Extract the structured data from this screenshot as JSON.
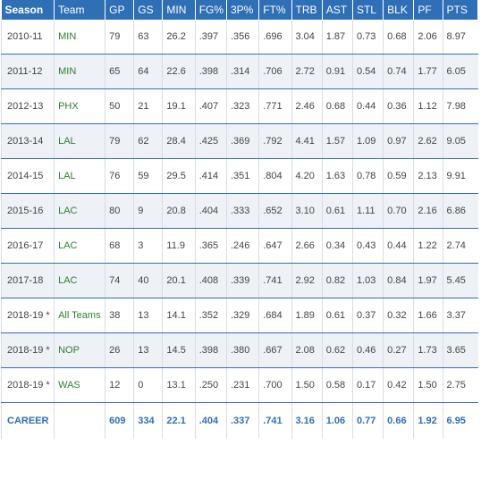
{
  "headers": [
    "Season",
    "Team",
    "GP",
    "GS",
    "MIN",
    "FG%",
    "3P%",
    "FT%",
    "TRB",
    "AST",
    "STL",
    "BLK",
    "PF",
    "PTS"
  ],
  "rows": [
    [
      "2010-11",
      "MIN",
      "79",
      "63",
      "26.2",
      ".397",
      ".356",
      ".696",
      "3.04",
      "1.87",
      "0.73",
      "0.68",
      "2.06",
      "8.97"
    ],
    [
      "2011-12",
      "MIN",
      "65",
      "64",
      "22.6",
      ".398",
      ".314",
      ".706",
      "2.72",
      "0.91",
      "0.54",
      "0.74",
      "1.77",
      "6.05"
    ],
    [
      "2012-13",
      "PHX",
      "50",
      "21",
      "19.1",
      ".407",
      ".323",
      ".771",
      "2.46",
      "0.68",
      "0.44",
      "0.36",
      "1.12",
      "7.98"
    ],
    [
      "2013-14",
      "LAL",
      "79",
      "62",
      "28.4",
      ".425",
      ".369",
      ".792",
      "4.41",
      "1.57",
      "1.09",
      "0.97",
      "2.62",
      "9.05"
    ],
    [
      "2014-15",
      "LAL",
      "76",
      "59",
      "29.5",
      ".414",
      ".351",
      ".804",
      "4.20",
      "1.63",
      "0.78",
      "0.59",
      "2.13",
      "9.91"
    ],
    [
      "2015-16",
      "LAC",
      "80",
      "9",
      "20.8",
      ".404",
      ".333",
      ".652",
      "3.10",
      "0.61",
      "1.11",
      "0.70",
      "2.16",
      "6.86"
    ],
    [
      "2016-17",
      "LAC",
      "68",
      "3",
      "11.9",
      ".365",
      ".246",
      ".647",
      "2.66",
      "0.34",
      "0.43",
      "0.44",
      "1.22",
      "2.74"
    ],
    [
      "2017-18",
      "LAC",
      "74",
      "40",
      "20.1",
      ".408",
      ".339",
      ".741",
      "2.92",
      "0.82",
      "1.03",
      "0.84",
      "1.97",
      "5.45"
    ],
    [
      "2018-19 *",
      "All Teams",
      "38",
      "13",
      "14.1",
      ".352",
      ".329",
      ".684",
      "1.89",
      "0.61",
      "0.37",
      "0.32",
      "1.66",
      "3.37"
    ],
    [
      "2018-19 *",
      "NOP",
      "26",
      "13",
      "14.5",
      ".398",
      ".380",
      ".667",
      "2.08",
      "0.62",
      "0.46",
      "0.27",
      "1.73",
      "3.65"
    ],
    [
      "2018-19 *",
      "WAS",
      "12",
      "0",
      "13.1",
      ".250",
      ".231",
      ".700",
      "1.50",
      "0.58",
      "0.17",
      "0.42",
      "1.50",
      "2.75"
    ]
  ],
  "career": [
    "CAREER",
    "",
    "609",
    "334",
    "22.1",
    ".404",
    ".337",
    ".741",
    "3.16",
    "1.06",
    "0.77",
    "0.66",
    "1.92",
    "6.95"
  ],
  "colors": {
    "header_bg": "#2f6fb6",
    "team_text": "#2e7d32",
    "row_alt_bg": "#eef2f7"
  }
}
